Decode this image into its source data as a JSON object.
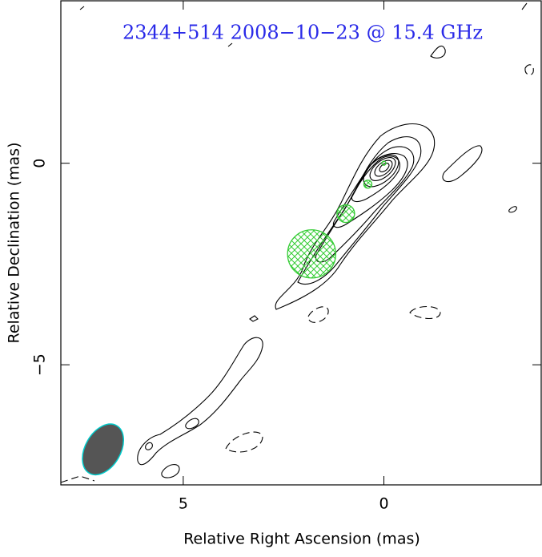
{
  "chart_data": {
    "type": "contour",
    "title": "2344+514   2008−10−23 @ 15.4 GHz",
    "xlabel": "Relative Right Ascension (mas)",
    "ylabel": "Relative Declination (mas)",
    "xlim": [
      8.05,
      -3.92
    ],
    "ylim": [
      -7.98,
      4.03
    ],
    "xticks": [
      5,
      0
    ],
    "yticks": [
      0,
      {
        "value": -5,
        "label": "−5"
      }
    ],
    "components": {
      "color": "#33cc33",
      "x": [
        0,
        0.4,
        0.95,
        1.8
      ],
      "y": [
        0,
        -0.52,
        -1.25,
        -2.25
      ],
      "size": [
        0.05,
        0.1,
        0.22,
        0.6
      ]
    },
    "beam": {
      "x": 7.0,
      "y": -7.1,
      "major": 0.85,
      "minor": 0.55,
      "angle": 30,
      "color": "#555555",
      "edge": "#00cccc"
    }
  }
}
